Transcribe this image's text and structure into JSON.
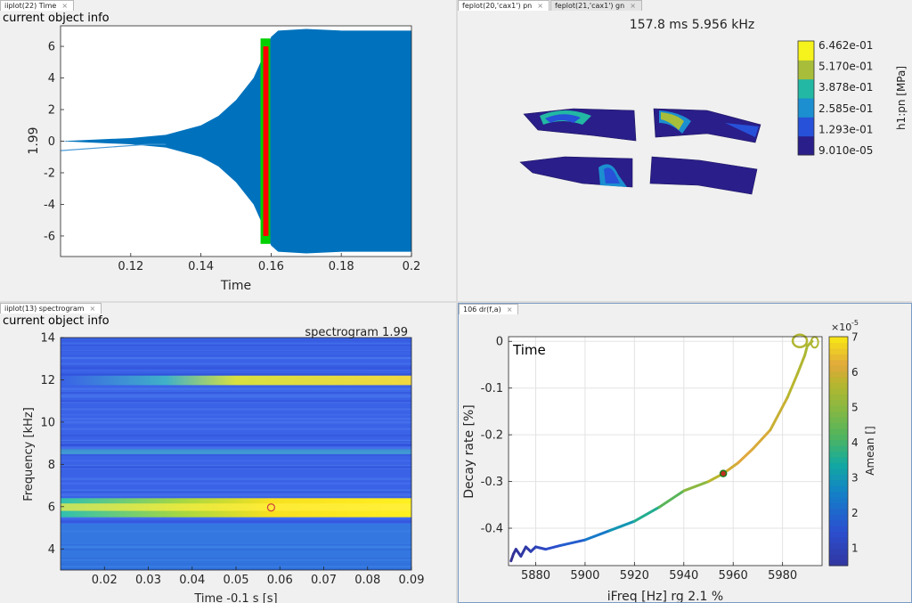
{
  "panels": {
    "time": {
      "tabs": [
        {
          "label": "iiplot(22) Time",
          "close": "×"
        }
      ],
      "object_info": "current object info",
      "ylabel": "1.99",
      "xlabel": "Time",
      "xticks": [
        "0.12",
        "0.14",
        "0.16",
        "0.18",
        "0.2"
      ],
      "yticks": [
        "6",
        "4",
        "2",
        "0",
        "-2",
        "-4",
        "-6"
      ]
    },
    "feplot": {
      "tabs": [
        {
          "label": "feplot(20,'cax1') pn",
          "close": "×"
        },
        {
          "label": "feplot(21,'cax1') gn",
          "close": "×"
        }
      ],
      "title": "157.8 ms 5.956 kHz",
      "colorbar_label": "h1:pn [MPa]",
      "colorbar_ticks": [
        "6.462e-01",
        "5.170e-01",
        "3.878e-01",
        "2.585e-01",
        "1.293e-01",
        "9.010e-05"
      ],
      "colormap": [
        "#2a1e8a",
        "#2751d8",
        "#1b8fd0",
        "#22b8a4",
        "#a8bd3a",
        "#f6f21c"
      ]
    },
    "spectrogram": {
      "tabs": [
        {
          "label": "iiplot(13) spectrogram",
          "close": "×"
        }
      ],
      "object_info": "current object info",
      "title": "spectrogram 1.99",
      "ylabel": "Frequency [kHz]",
      "xlabel": "Time -0.1 s [s]",
      "xticks": [
        "0.02",
        "0.03",
        "0.04",
        "0.05",
        "0.06",
        "0.07",
        "0.08",
        "0.09"
      ],
      "yticks": [
        "14",
        "12",
        "10",
        "8",
        "6",
        "4"
      ]
    },
    "decay": {
      "tabs": [
        {
          "label": "106 dr(f,a)",
          "close": "×"
        }
      ],
      "legend_text": "Time",
      "ylabel": "Decay rate [%]",
      "xlabel": "iFreq [Hz] rg 2.1 %",
      "xticks": [
        "5880",
        "5900",
        "5920",
        "5940",
        "5960",
        "5980"
      ],
      "yticks": [
        "0",
        "-0.1",
        "-0.2",
        "-0.3",
        "-0.4"
      ],
      "colorbar_label": "Amean []",
      "colorbar_exponent": "×10",
      "colorbar_exponent_power": "-5",
      "colorbar_ticks": [
        "7",
        "6",
        "5",
        "4",
        "3",
        "2",
        "1"
      ]
    }
  },
  "chart_data": [
    {
      "type": "line",
      "panel": "time",
      "xlabel": "Time",
      "ylabel": "1.99",
      "xlim": [
        0.1,
        0.2
      ],
      "ylim": [
        -7.3,
        7.3
      ],
      "description_series": [
        {
          "name": "",
          "color": "#0072bd",
          "envelope_x": [
            0.1,
            0.12,
            0.13,
            0.14,
            0.145,
            0.15,
            0.155,
            0.158,
            0.16,
            0.162,
            0.17,
            0.18,
            0.19,
            0.2
          ],
          "envelope_y": [
            0.0,
            0.2,
            0.4,
            1.0,
            1.6,
            2.6,
            4.0,
            5.5,
            6.6,
            7.0,
            7.1,
            7.0,
            7.0,
            7.0
          ]
        },
        {
          "name": "",
          "color": "#ff0000",
          "x_range": [
            0.158,
            0.159
          ],
          "y_range": [
            -6.0,
            6.0
          ]
        },
        {
          "name": "",
          "color": "#00d000",
          "x_range": [
            0.1575,
            0.1595
          ],
          "y_range": [
            -6.5,
            6.5
          ]
        }
      ]
    },
    {
      "type": "heatmap",
      "panel": "spectrogram",
      "title": "spectrogram 1.99",
      "xlabel": "Time -0.1 s [s]",
      "ylabel": "Frequency [kHz]",
      "xlim": [
        0.01,
        0.09
      ],
      "ylim": [
        3,
        14
      ],
      "bands_khz": [
        {
          "freq": 5.96,
          "x_start": 0.01,
          "strength": "high"
        },
        {
          "freq": 11.95,
          "x_start": 0.035,
          "strength": "medium"
        },
        {
          "freq": 8.6,
          "x_start": 0.01,
          "strength": "low"
        }
      ],
      "marker": {
        "x": 0.058,
        "y": 5.96,
        "color": "#d04040"
      }
    },
    {
      "type": "line",
      "panel": "decay",
      "xlabel": "iFreq [Hz] rg 2.1 %",
      "ylabel": "Decay rate [%]",
      "xlim": [
        5869,
        5996
      ],
      "ylim": [
        -0.48,
        0.01
      ],
      "series": [
        {
          "name": "Time",
          "x": [
            5870,
            5871,
            5872,
            5874,
            5876,
            5878,
            5880,
            5884,
            5890,
            5900,
            5910,
            5920,
            5930,
            5940,
            5950,
            5956,
            5962,
            5968,
            5975,
            5982,
            5986,
            5989,
            5990,
            5992
          ],
          "y": [
            -0.47,
            -0.455,
            -0.445,
            -0.46,
            -0.44,
            -0.45,
            -0.44,
            -0.445,
            -0.437,
            -0.425,
            -0.405,
            -0.385,
            -0.355,
            -0.32,
            -0.3,
            -0.283,
            -0.26,
            -0.23,
            -0.19,
            -0.12,
            -0.07,
            -0.03,
            -0.01,
            0.0
          ],
          "amean": [
            0.2,
            0.4,
            0.5,
            0.6,
            0.7,
            0.9,
            1.1,
            1.4,
            1.8,
            2.4,
            3.0,
            3.6,
            4.3,
            5.0,
            5.7,
            6.0,
            6.2,
            6.1,
            5.9,
            5.7,
            5.6,
            5.5,
            5.5,
            5.5
          ]
        }
      ],
      "marker": {
        "x": 5956,
        "y": -0.283,
        "color": "#1a7a1a"
      },
      "colorbar": {
        "min": 0.5,
        "max": 7,
        "label": "Amean []",
        "exponent": -5
      }
    }
  ]
}
